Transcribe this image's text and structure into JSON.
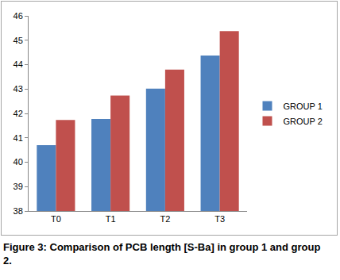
{
  "chart_data": {
    "type": "bar",
    "title": "Figure 3: Comparison of PCB length [S-Ba] in group 1 and group 2.",
    "categories": [
      "T0",
      "T1",
      "T2",
      "T3"
    ],
    "series": [
      {
        "name": "GROUP 1",
        "color": "#4f81bd",
        "values": [
          40.7,
          41.77,
          43.02,
          44.37
        ]
      },
      {
        "name": "GROUP 2",
        "color": "#c0504d",
        "values": [
          41.73,
          42.73,
          43.8,
          45.37
        ]
      }
    ],
    "ylim": [
      38,
      46
    ],
    "yticks": [
      38,
      39,
      40,
      41,
      42,
      43,
      44,
      45,
      46
    ],
    "grid": false,
    "legend": "right"
  }
}
